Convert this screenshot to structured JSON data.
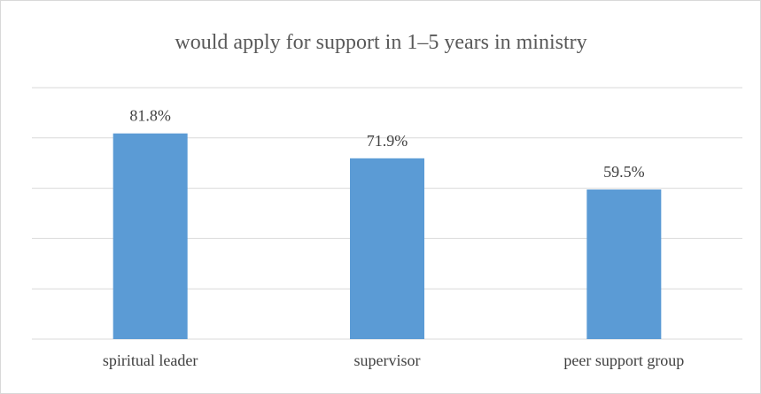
{
  "chart_data": {
    "type": "bar",
    "title": "would apply for support in 1–5 years in ministry",
    "categories": [
      "spiritual leader",
      "supervisor",
      "peer support group"
    ],
    "values": [
      81.8,
      71.9,
      59.5
    ],
    "data_labels": [
      "81.8%",
      "71.9%",
      "59.5%"
    ],
    "ylim": [
      0,
      100
    ],
    "y_gridlines": [
      0,
      20,
      40,
      60,
      80,
      100
    ],
    "grid": true,
    "legend": "none",
    "bar_color": "#5b9bd5",
    "grid_color": "#d9d9d9"
  }
}
